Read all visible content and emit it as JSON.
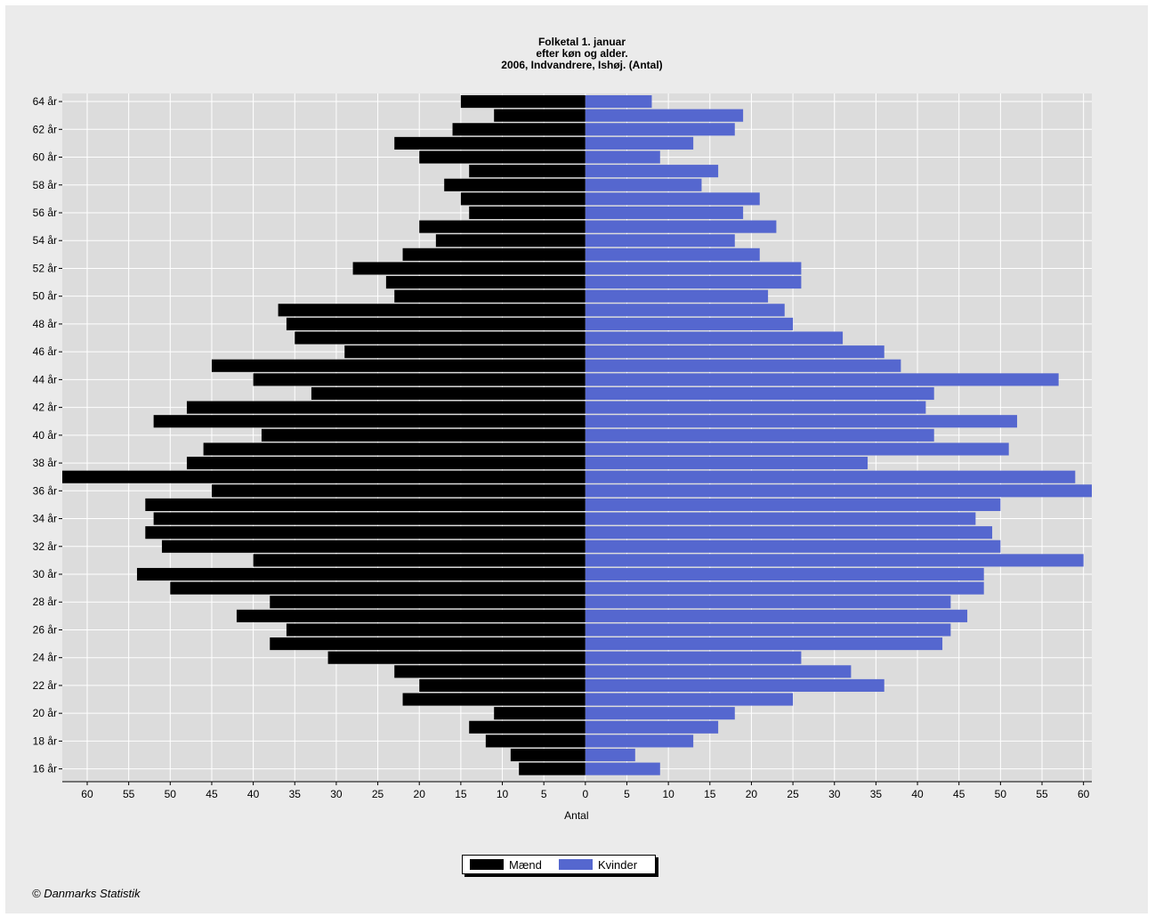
{
  "page": {
    "top_text": "",
    "copyright": "© Danmarks Statistik"
  },
  "colors": {
    "background": "#ebebeb",
    "plot_background": "#dcdcdc",
    "grid": "#ffffff",
    "men": "#000000",
    "women": "#5567cf"
  },
  "chart_data": {
    "type": "bar",
    "orientation": "horizontal-population-pyramid",
    "title": [
      "Folketal 1. januar",
      "efter køn og alder.",
      "2006, Indvandrere, Ishøj. (Antal)"
    ],
    "xlabel": "Antal",
    "ylabel": "",
    "xlim": [
      -63,
      61
    ],
    "x_ticks": [
      -60,
      -55,
      -50,
      -45,
      -40,
      -35,
      -30,
      -25,
      -20,
      -15,
      -10,
      -5,
      0,
      5,
      10,
      15,
      20,
      25,
      30,
      35,
      40,
      45,
      50,
      55,
      60
    ],
    "grid": true,
    "legend_position": "bottom-center",
    "categories": [
      64,
      63,
      62,
      61,
      60,
      59,
      58,
      57,
      56,
      55,
      54,
      53,
      52,
      51,
      50,
      49,
      48,
      47,
      46,
      45,
      44,
      43,
      42,
      41,
      40,
      39,
      38,
      37,
      36,
      35,
      34,
      33,
      32,
      31,
      30,
      29,
      28,
      27,
      26,
      25,
      24,
      23,
      22,
      21,
      20,
      19,
      18,
      17,
      16
    ],
    "category_labels": [
      "64 år",
      "",
      "62 år",
      "",
      "60 år",
      "",
      "58 år",
      "",
      "56 år",
      "",
      "54 år",
      "",
      "52 år",
      "",
      "50 år",
      "",
      "48 år",
      "",
      "46 år",
      "",
      "44 år",
      "",
      "42 år",
      "",
      "40 år",
      "",
      "38 år",
      "",
      "36 år",
      "",
      "34 år",
      "",
      "32 år",
      "",
      "30 år",
      "",
      "28 år",
      "",
      "26 år",
      "",
      "24 år",
      "",
      "22 år",
      "",
      "20 år",
      "",
      "18 år",
      "",
      "16 år"
    ],
    "series": [
      {
        "name": "Mænd",
        "color": "#000000",
        "values": [
          15,
          11,
          16,
          23,
          20,
          14,
          17,
          15,
          14,
          20,
          18,
          22,
          28,
          24,
          23,
          37,
          36,
          35,
          29,
          45,
          40,
          33,
          48,
          52,
          39,
          46,
          48,
          63,
          45,
          53,
          52,
          53,
          51,
          40,
          54,
          50,
          38,
          42,
          36,
          38,
          31,
          23,
          20,
          22,
          11,
          14,
          12,
          9,
          8
        ]
      },
      {
        "name": "Kvinder",
        "color": "#5567cf",
        "values": [
          8,
          19,
          18,
          13,
          9,
          16,
          14,
          21,
          19,
          23,
          18,
          21,
          26,
          26,
          22,
          24,
          25,
          31,
          36,
          38,
          57,
          42,
          41,
          52,
          42,
          51,
          34,
          59,
          61,
          50,
          47,
          49,
          50,
          60,
          48,
          48,
          44,
          46,
          44,
          43,
          26,
          32,
          36,
          25,
          18,
          16,
          13,
          6,
          9
        ]
      }
    ]
  }
}
